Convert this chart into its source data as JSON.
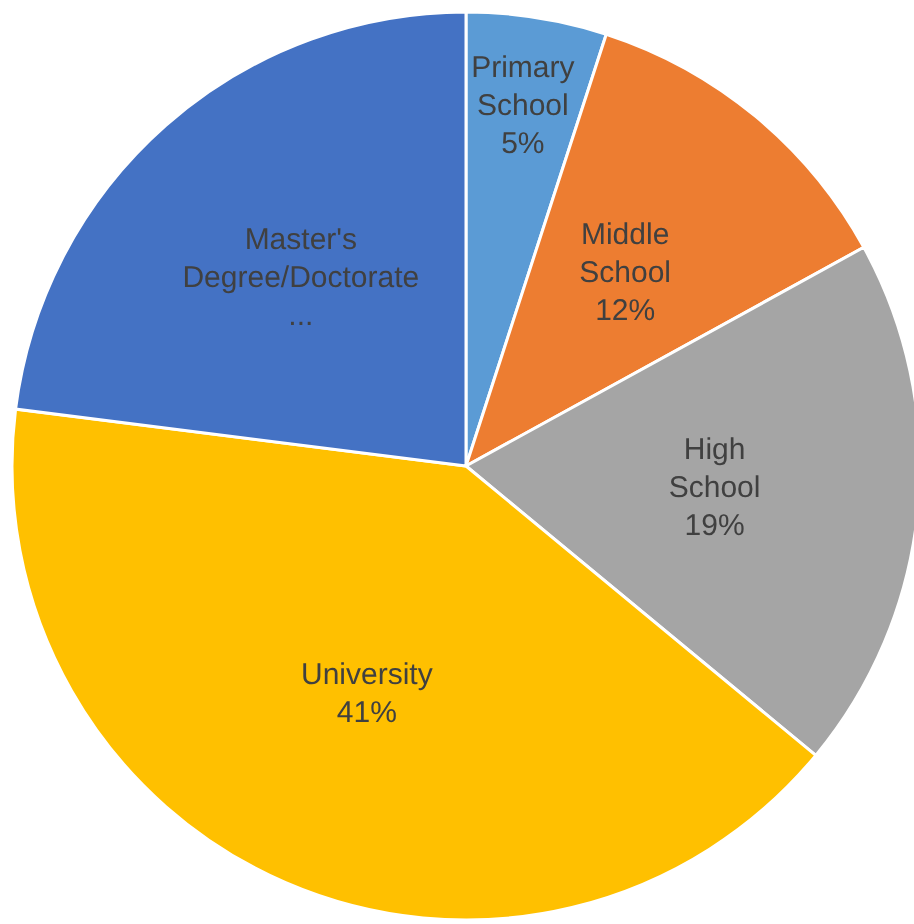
{
  "chart_data": {
    "type": "pie",
    "categories": [
      "Primary School",
      "Middle School",
      "High School",
      "University",
      "Master's Degree/Doctorate..."
    ],
    "values": [
      5,
      12,
      19,
      41,
      23
    ],
    "colors": [
      "#5b9bd5",
      "#ed7d31",
      "#a5a5a5",
      "#ffc000",
      "#4472c4"
    ],
    "value_labels": [
      "5%",
      "12%",
      "19%",
      "41%",
      null
    ]
  }
}
